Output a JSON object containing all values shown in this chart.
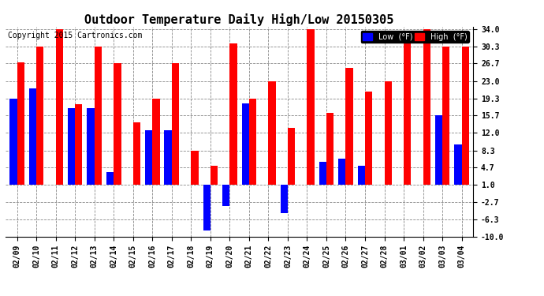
{
  "title": "Outdoor Temperature Daily High/Low 20150305",
  "copyright": "Copyright 2015 Cartronics.com",
  "legend_low": "Low  (°F)",
  "legend_high": "High  (°F)",
  "dates": [
    "02/09",
    "02/10",
    "02/11",
    "02/12",
    "02/13",
    "02/14",
    "02/15",
    "02/16",
    "02/17",
    "02/18",
    "02/19",
    "02/20",
    "02/21",
    "02/22",
    "02/23",
    "02/24",
    "02/25",
    "02/26",
    "02/27",
    "02/28",
    "03/01",
    "03/02",
    "03/03",
    "03/04"
  ],
  "high": [
    27.0,
    30.3,
    34.0,
    18.0,
    30.3,
    26.7,
    14.3,
    19.3,
    26.7,
    8.3,
    5.0,
    31.0,
    19.3,
    23.0,
    13.0,
    34.0,
    16.3,
    25.7,
    20.7,
    23.0,
    31.5,
    34.0,
    30.3,
    30.3
  ],
  "low": [
    19.3,
    21.5,
    1.0,
    17.3,
    17.3,
    3.7,
    1.0,
    12.5,
    12.5,
    1.0,
    -8.7,
    -3.5,
    18.3,
    1.0,
    -5.0,
    1.0,
    5.8,
    6.5,
    5.0,
    1.0,
    1.0,
    1.0,
    15.7,
    9.5
  ],
  "baseline": 1.0,
  "ylim": [
    -10.0,
    34.5
  ],
  "yticks": [
    34.0,
    30.3,
    26.7,
    23.0,
    19.3,
    15.7,
    12.0,
    8.3,
    4.7,
    1.0,
    -2.7,
    -6.3,
    -10.0
  ],
  "bar_width": 0.38,
  "high_color": "#ff0000",
  "low_color": "#0000ff",
  "bg_color": "#ffffff",
  "grid_color": "#888888",
  "title_fontsize": 11,
  "tick_fontsize": 7,
  "copyright_fontsize": 7
}
